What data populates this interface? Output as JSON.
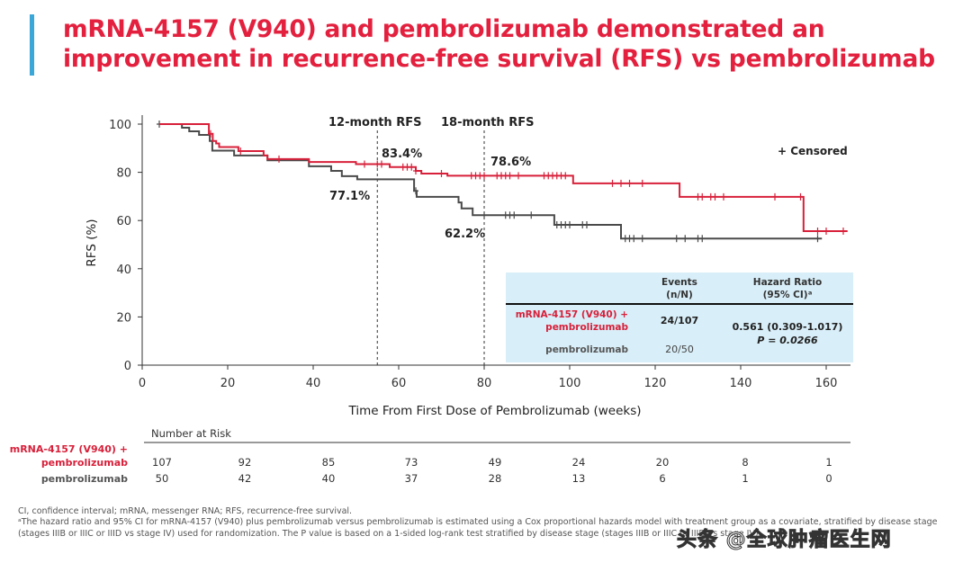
{
  "title": {
    "line1": "mRNA-4157 (V940) and pembrolizumab demonstrated an",
    "line2": "improvement in recurrence-free survival (RFS) vs pembrolizumab"
  },
  "colors": {
    "accent_bar": "#3aa7d8",
    "title": "#e3203e",
    "combo": "#d8203a",
    "pembro": "#4a4a4a",
    "table_bg": "#d8eef8"
  },
  "chart_data": {
    "type": "line",
    "xlabel": "Time From First Dose of Pembrolizumab (weeks)",
    "ylabel": "RFS (%)",
    "xlim": [
      0,
      165
    ],
    "ylim": [
      0,
      100
    ],
    "xticks": [
      0,
      20,
      40,
      60,
      80,
      100,
      120,
      140,
      160
    ],
    "yticks": [
      0,
      20,
      40,
      60,
      80,
      100
    ],
    "legend": "+ Censored",
    "markers": [
      {
        "label": "12-month RFS",
        "x": 55
      },
      {
        "label": "18-month RFS",
        "x": 80
      }
    ],
    "annotations": [
      {
        "text": "83.4%",
        "series": "combo"
      },
      {
        "text": "77.1%",
        "series": "pembro"
      },
      {
        "text": "78.6%",
        "series": "combo"
      },
      {
        "text": "62.2%",
        "series": "pembro"
      }
    ],
    "series": [
      {
        "key": "combo",
        "color": "#d8203a",
        "steps": [
          [
            4,
            100
          ],
          [
            15.6,
            96
          ],
          [
            16.5,
            93
          ],
          [
            17.3,
            92
          ],
          [
            18,
            90.5
          ],
          [
            22.5,
            88.8
          ],
          [
            28.4,
            87
          ],
          [
            29.3,
            85.5
          ],
          [
            39,
            84.3
          ],
          [
            50,
            83.4
          ],
          [
            57.9,
            82.2
          ],
          [
            64,
            80.6
          ],
          [
            65.3,
            79.5
          ],
          [
            71.4,
            78.6
          ],
          [
            100.8,
            75.4
          ],
          [
            125.7,
            69.8
          ],
          [
            154.7,
            55.6
          ],
          [
            165,
            55.6
          ]
        ],
        "censored": [
          16,
          23,
          32,
          52,
          55,
          56,
          61,
          62,
          63,
          64,
          70,
          77,
          78,
          79,
          80,
          83,
          84,
          85,
          86,
          88,
          94,
          95,
          96,
          97,
          98,
          99,
          110,
          112,
          114,
          117,
          130,
          131,
          133,
          134,
          136,
          148,
          154,
          158,
          160,
          164
        ]
      },
      {
        "key": "pembro",
        "color": "#4a4a4a",
        "steps": [
          [
            4,
            100
          ],
          [
            9.3,
            98.5
          ],
          [
            11,
            97
          ],
          [
            13.3,
            95.5
          ],
          [
            15.8,
            93
          ],
          [
            16.4,
            89
          ],
          [
            21.5,
            87
          ],
          [
            29.3,
            85
          ],
          [
            39,
            82.5
          ],
          [
            44.2,
            80.6
          ],
          [
            46.7,
            78.4
          ],
          [
            50.3,
            77.1
          ],
          [
            63.6,
            72.3
          ],
          [
            64.2,
            69.8
          ],
          [
            74,
            67.5
          ],
          [
            74.7,
            65
          ],
          [
            77.3,
            62.2
          ],
          [
            96.4,
            58.2
          ],
          [
            112,
            52.5
          ],
          [
            159,
            52.5
          ]
        ],
        "censored": [
          4,
          64,
          80,
          85,
          86,
          87,
          91,
          97,
          98,
          99,
          100,
          103,
          104,
          113,
          114,
          115,
          117,
          125,
          127,
          130,
          131,
          158
        ]
      }
    ],
    "hr_table": {
      "col_events": "Events",
      "col_events2": "(n/N)",
      "col_hr": "Hazard Ratio",
      "col_hr2": "(95% CI)ᵃ",
      "row1_label1": "mRNA-4157 (V940) +",
      "row1_label2": "pembrolizumab",
      "row1_events": "24/107",
      "row2_label": "pembrolizumab",
      "row2_events": "20/50",
      "hr": "0.561 (0.309-1.017)",
      "p": "P = 0.0266"
    },
    "risk": {
      "header": "Number at Risk",
      "combo_label1": "mRNA-4157 (V940) +",
      "combo_label2": "pembrolizumab",
      "pembro_label": "pembrolizumab",
      "combo": [
        "107",
        "92",
        "85",
        "73",
        "49",
        "24",
        "20",
        "8",
        "1"
      ],
      "pembro": [
        "50",
        "42",
        "40",
        "37",
        "28",
        "13",
        "6",
        "1",
        "0"
      ]
    }
  },
  "footnotes": {
    "line1": "CI, confidence interval; mRNA, messenger RNA; RFS, recurrence-free survival.",
    "line2": "ᵃThe hazard ratio and 95% CI for mRNA-4157 (V940) plus pembrolizumab versus pembrolizumab is estimated using a Cox proportional hazards model with treatment group as a covariate, stratified by disease stage",
    "line3": "(stages IIIB or IIIC or IIID vs stage IV) used for randomization. The P value is based on a 1-sided log-rank test stratified by disease stage (stages IIIB or IIIC or IIID vs stage IV)."
  },
  "watermark": "头条 @全球肿瘤医生网"
}
